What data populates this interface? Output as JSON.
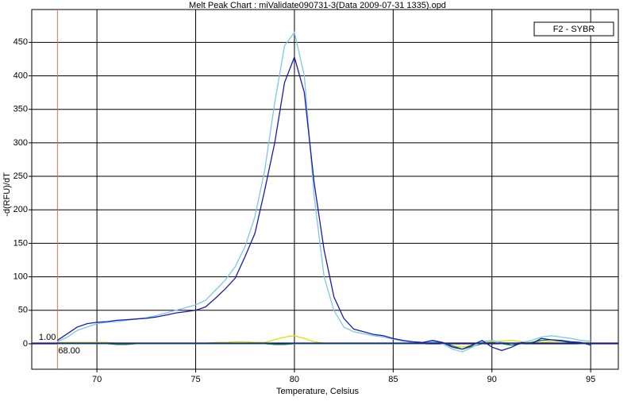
{
  "chart_data": {
    "type": "line",
    "title": "Melt Peak Chart : miValidate090731-3(Data 2009-07-31 1335).opd",
    "x_label": "Temperature, Celsius",
    "y_label": "-d(RFU)/dT",
    "legend_label": "F2 - SYBR",
    "xlim": [
      66.7,
      96.4
    ],
    "ylim": [
      -38,
      499
    ],
    "xticks": [
      70,
      75,
      80,
      85,
      90,
      95
    ],
    "yticks": [
      0,
      50,
      100,
      150,
      200,
      250,
      300,
      350,
      400,
      450
    ],
    "grid": true,
    "threshold": {
      "x": {
        "value": 68,
        "label": "68.00"
      },
      "y": {
        "value": 1,
        "label": "1.00"
      },
      "x_color": "#e07040",
      "y_color": "#1a1ab4"
    },
    "x": [
      68,
      68.5,
      69,
      69.5,
      70,
      70.5,
      71,
      71.5,
      72,
      72.5,
      73,
      73.5,
      74,
      74.5,
      75,
      75.5,
      76,
      76.5,
      77,
      77.5,
      78,
      78.5,
      79,
      79.5,
      80,
      80.5,
      81,
      81.5,
      82,
      82.5,
      83,
      83.5,
      84,
      84.5,
      85,
      85.5,
      86,
      86.5,
      87,
      87.5,
      88,
      88.5,
      89,
      89.5,
      90,
      90.5,
      91,
      91.5,
      92,
      92.5,
      93,
      93.5,
      94,
      94.5,
      95
    ],
    "series": [
      {
        "color": "#e0e000",
        "values": [
          2,
          2,
          2,
          2,
          2,
          2,
          1,
          1,
          1,
          1,
          1,
          1,
          1,
          1,
          1,
          1,
          2,
          2,
          3,
          3,
          2,
          2,
          6,
          10,
          12,
          8,
          3,
          1,
          0,
          0,
          0,
          0,
          0,
          0,
          0,
          0,
          0,
          0,
          2,
          1,
          -3,
          -5,
          -2,
          2,
          3,
          4,
          5,
          3,
          2,
          2,
          3,
          4,
          3,
          2,
          2
        ]
      },
      {
        "color": "#1a8a1a",
        "values": [
          0,
          0,
          0,
          0,
          0,
          0,
          -1,
          -1,
          0,
          0,
          0,
          0,
          0,
          0,
          0,
          0,
          0,
          0,
          0,
          0,
          0,
          0,
          -1,
          -1,
          0,
          0,
          0,
          0,
          0,
          0,
          0,
          0,
          0,
          0,
          0,
          0,
          0,
          0,
          3,
          2,
          -3,
          -8,
          -4,
          0,
          2,
          0,
          -2,
          0,
          2,
          5,
          6,
          4,
          2,
          0,
          0
        ]
      },
      {
        "color": "#7cc8e8",
        "values": [
          3,
          10,
          20,
          25,
          30,
          32,
          33,
          35,
          37,
          39,
          42,
          46,
          50,
          54,
          58,
          65,
          80,
          95,
          115,
          145,
          190,
          260,
          360,
          445,
          465,
          400,
          220,
          100,
          50,
          25,
          18,
          15,
          12,
          10,
          7,
          4,
          2,
          1,
          3,
          0,
          -8,
          -12,
          -5,
          3,
          5,
          2,
          0,
          2,
          5,
          10,
          12,
          10,
          8,
          5,
          4
        ]
      },
      {
        "color": "#1a1ab4",
        "values": [
          5,
          15,
          25,
          30,
          32,
          33,
          35,
          36,
          37,
          38,
          40,
          43,
          46,
          48,
          50,
          55,
          68,
          82,
          98,
          130,
          165,
          230,
          300,
          390,
          428,
          375,
          240,
          140,
          70,
          38,
          22,
          18,
          14,
          12,
          8,
          5,
          3,
          2,
          5,
          2,
          -5,
          -8,
          -2,
          5,
          -5,
          -10,
          -5,
          2,
          0,
          8,
          6,
          5,
          3,
          2,
          -2
        ]
      }
    ]
  }
}
